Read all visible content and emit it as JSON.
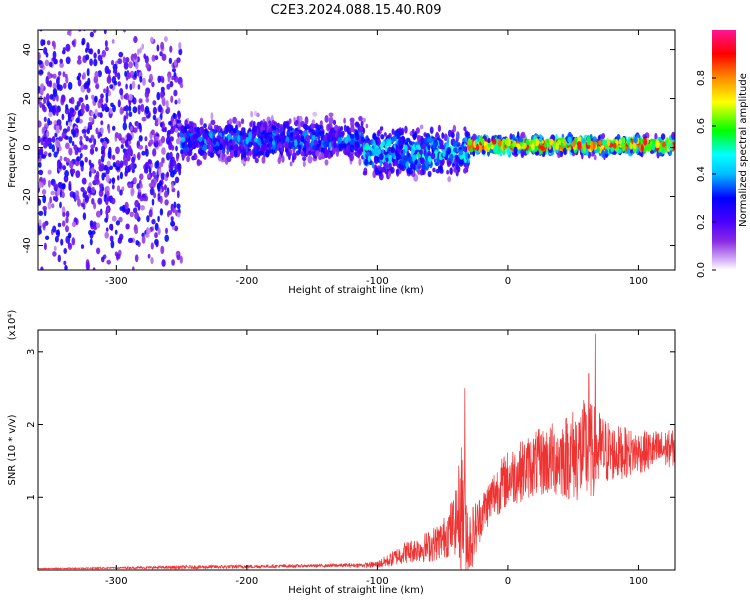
{
  "title": "C2E3.2024.088.15.40.R09",
  "chart_data": [
    {
      "type": "heatmap",
      "xlabel": "Height of straight line (km)",
      "ylabel": "Frequency (Hz)",
      "xlim": [
        -360,
        128
      ],
      "ylim": [
        -50,
        48
      ],
      "xticks": [
        "-300",
        "-200",
        "-100",
        "0",
        "100"
      ],
      "yticks": [
        "-40",
        "-20",
        "0",
        "20",
        "40"
      ],
      "colorbar": {
        "label": "Normalized spectral amplitude",
        "range": [
          0,
          1
        ],
        "ticks": [
          "0.0",
          "0.2",
          "0.4",
          "0.6",
          "0.8"
        ],
        "colors": [
          "#ffffff",
          "#d8b4f8",
          "#8a2be2",
          "#5a00e6",
          "#0000ff",
          "#00bfff",
          "#00ffff",
          "#00ff00",
          "#ffff00",
          "#ff8c00",
          "#ff0000",
          "#ff1493"
        ]
      },
      "bands": [
        {
          "x": [
            -360,
            -250
          ],
          "center_freq": 2,
          "spread": 48,
          "intensity": 0.3,
          "description_only_for_render": ""
        },
        {
          "x": [
            -250,
            -110
          ],
          "center_freq": 3,
          "spread": 7,
          "intensity": 0.35
        },
        {
          "x": [
            -110,
            -30
          ],
          "center_freq": -2,
          "spread": 8,
          "intensity": 0.45
        },
        {
          "x": [
            -30,
            128
          ],
          "center_freq": 1,
          "spread": 3,
          "intensity": 0.75
        }
      ]
    },
    {
      "type": "line",
      "xlabel": "Height of straight line (km)",
      "ylabel": "SNR (10 * v/v)",
      "yunit": "(x10⁴)",
      "xlim": [
        -360,
        128
      ],
      "ylim": [
        0,
        3.3
      ],
      "xticks": [
        "-300",
        "-200",
        "-100",
        "0",
        "100"
      ],
      "yticks": [
        "1",
        "2",
        "3"
      ],
      "color": "#ee3333",
      "envelope": {
        "x": [
          -360,
          -300,
          -250,
          -200,
          -150,
          -110,
          -100,
          -90,
          -80,
          -70,
          -60,
          -50,
          -40,
          -35,
          -30,
          -25,
          -20,
          -10,
          0,
          20,
          40,
          60,
          70,
          80,
          100,
          128
        ],
        "base": [
          0.02,
          0.03,
          0.04,
          0.05,
          0.06,
          0.07,
          0.08,
          0.15,
          0.25,
          0.3,
          0.35,
          0.45,
          0.7,
          1.0,
          0.4,
          0.6,
          0.8,
          1.1,
          1.3,
          1.5,
          1.6,
          1.7,
          1.7,
          1.65,
          1.65,
          1.7
        ],
        "amp": [
          0.01,
          0.02,
          0.05,
          0.05,
          0.04,
          0.06,
          0.1,
          0.2,
          0.3,
          0.35,
          0.45,
          0.55,
          0.9,
          2.0,
          1.0,
          0.8,
          0.6,
          0.7,
          0.8,
          0.9,
          1.1,
          1.5,
          1.1,
          0.8,
          0.6,
          0.5
        ]
      },
      "peaks": [
        {
          "x": -33,
          "y": 2.5
        },
        {
          "x": 67,
          "y": 3.25
        },
        {
          "x": 62,
          "y": 2.7
        }
      ]
    }
  ]
}
